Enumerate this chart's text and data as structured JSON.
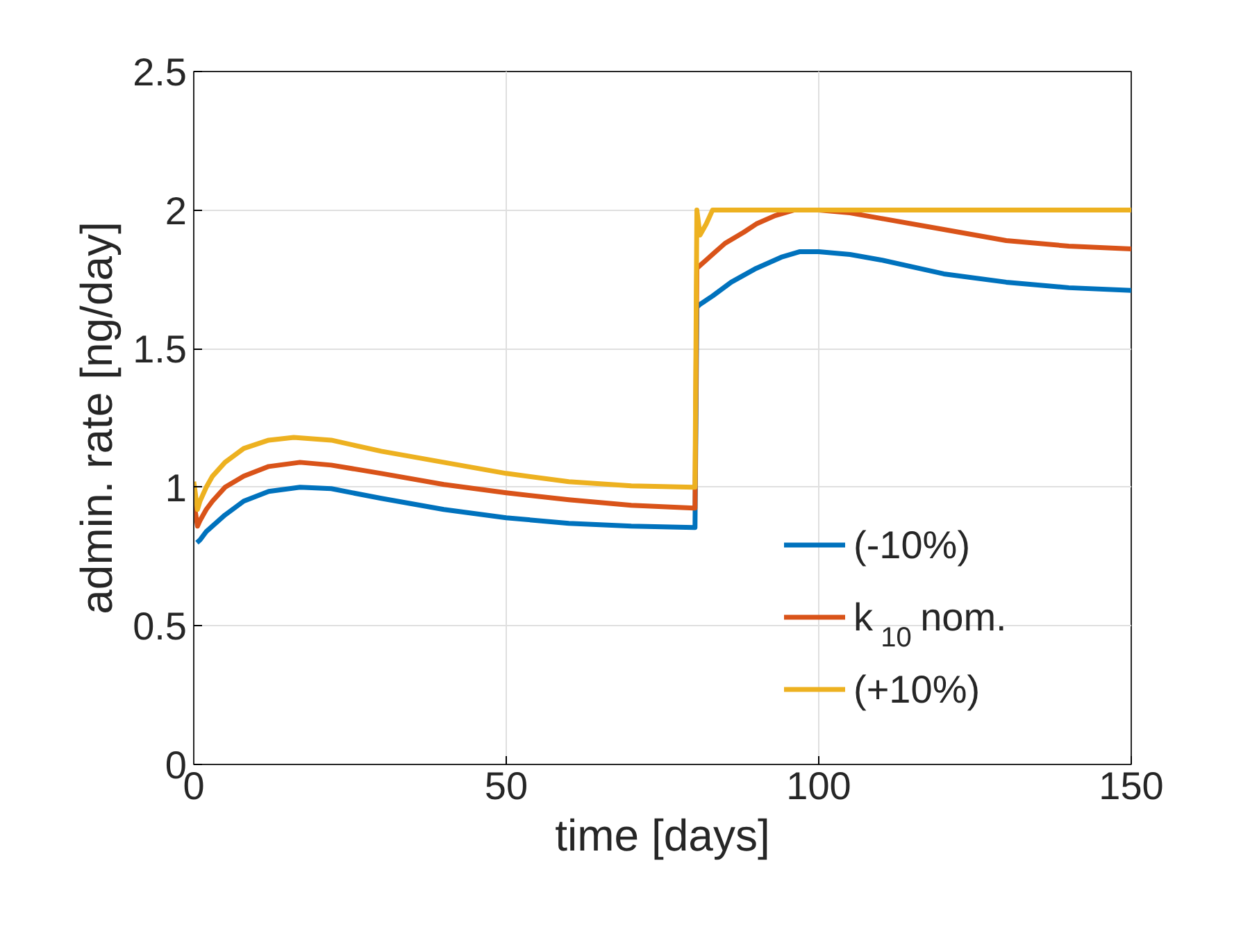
{
  "chart_data": {
    "type": "line",
    "xlabel": "time [days]",
    "ylabel": "admin. rate [ng/day]",
    "xlim": [
      0,
      150
    ],
    "ylim": [
      0,
      2.5
    ],
    "xticks": [
      0,
      50,
      100,
      150
    ],
    "yticks": [
      0,
      0.5,
      1,
      1.5,
      2,
      2.5
    ],
    "grid": true,
    "legend": "bottom right",
    "series": [
      {
        "name": "(-10%)",
        "color": "#0072bd",
        "x": [
          0.5,
          1,
          2,
          3,
          5,
          8,
          12,
          17,
          22,
          30,
          40,
          50,
          60,
          70,
          80,
          80.2,
          80.5,
          81,
          83,
          86,
          90,
          94,
          97,
          100,
          105,
          110,
          120,
          130,
          140,
          150
        ],
        "values": [
          0.8,
          0.81,
          0.84,
          0.86,
          0.9,
          0.95,
          0.985,
          1.0,
          0.995,
          0.96,
          0.92,
          0.89,
          0.87,
          0.86,
          0.855,
          0.855,
          1.65,
          1.66,
          1.69,
          1.74,
          1.79,
          1.83,
          1.85,
          1.85,
          1.84,
          1.82,
          1.77,
          1.74,
          1.72,
          1.71
        ]
      },
      {
        "name": "k$_{10}$ nom.",
        "color": "#d95319",
        "x": [
          0,
          0.6,
          1,
          2,
          3,
          5,
          8,
          12,
          17,
          22,
          30,
          40,
          50,
          60,
          70,
          80,
          80.2,
          80.5,
          81,
          83,
          85,
          88,
          90,
          93,
          96,
          100,
          105,
          110,
          120,
          130,
          140,
          150
        ],
        "values": [
          0.95,
          0.86,
          0.88,
          0.92,
          0.95,
          1.0,
          1.04,
          1.075,
          1.09,
          1.08,
          1.05,
          1.01,
          0.98,
          0.955,
          0.935,
          0.925,
          0.925,
          1.79,
          1.8,
          1.84,
          1.88,
          1.92,
          1.95,
          1.98,
          2.0,
          2.0,
          1.99,
          1.97,
          1.93,
          1.89,
          1.87,
          1.86
        ]
      },
      {
        "name": "(+10%)",
        "color": "#edb120",
        "x": [
          0,
          0.6,
          1,
          2,
          3,
          5,
          8,
          12,
          16,
          22,
          30,
          40,
          50,
          60,
          70,
          80,
          80.2,
          80.5,
          81,
          82,
          83,
          90,
          100,
          120,
          150
        ],
        "values": [
          1.02,
          0.92,
          0.95,
          1.0,
          1.04,
          1.09,
          1.14,
          1.17,
          1.18,
          1.17,
          1.13,
          1.09,
          1.05,
          1.02,
          1.005,
          1.0,
          1.0,
          2.0,
          1.91,
          1.95,
          2.0,
          2.0,
          2.0,
          2.0,
          2.0
        ]
      }
    ]
  }
}
